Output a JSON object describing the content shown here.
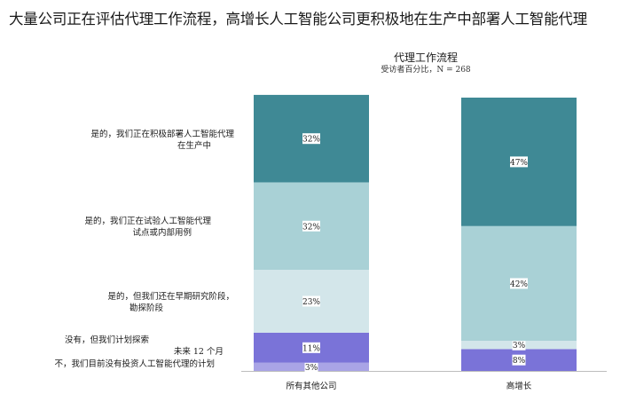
{
  "headline": "大量公司正在评估代理工作流程，高增长人工智能公司更积极地在生产中部署人工智能代理",
  "chart_data": {
    "type": "bar",
    "stacked": true,
    "title": "代理工作流程",
    "note": "受访者百分比，N = 268",
    "categories": [
      "所有其他公司",
      "高增长"
    ],
    "ylim": [
      0,
      100
    ],
    "legend_placement": "left",
    "series": [
      {
        "name": "不，我们目前没有投资人工智能代理的计划",
        "values": [
          3,
          0
        ],
        "labels": [
          "3%",
          ""
        ],
        "color": "#a9a4e6"
      },
      {
        "name": "没有，但我们计划探索未来 12 个月",
        "values": [
          11,
          8
        ],
        "labels": [
          "11%",
          "8%"
        ],
        "color": "#7a73d8"
      },
      {
        "name": "是的，但我们还在早期研究阶段，勘探阶段",
        "values": [
          23,
          3
        ],
        "labels": [
          "23%",
          "3%"
        ],
        "color": "#d3e6ea"
      },
      {
        "name": "是的，我们正在试验人工智能代理试点或内部用例",
        "values": [
          32,
          42
        ],
        "labels": [
          "32%",
          "42%"
        ],
        "color": "#a9d1d6"
      },
      {
        "name": "是的，我们正在积极部署人工智能代理在生产中",
        "values": [
          32,
          47
        ],
        "labels": [
          "32%",
          "47%"
        ],
        "color": "#3f8995"
      }
    ]
  },
  "row_labels": {
    "deploying": {
      "line1": "是的，我们正在积极部署人工智能代理",
      "line2": "在生产中"
    },
    "piloting": {
      "line1": "是的，我们正在试验人工智能代理",
      "line2": "试点或内部用例"
    },
    "research": {
      "line1": "是的，但我们还在早期研究阶段，",
      "line2": "勘探阶段"
    },
    "planning": {
      "line1": "没有，但我们计划探索",
      "line2": "未来  12  个月"
    },
    "none": {
      "line1": "不，我们目前没有投资人工智能代理的计划"
    }
  }
}
